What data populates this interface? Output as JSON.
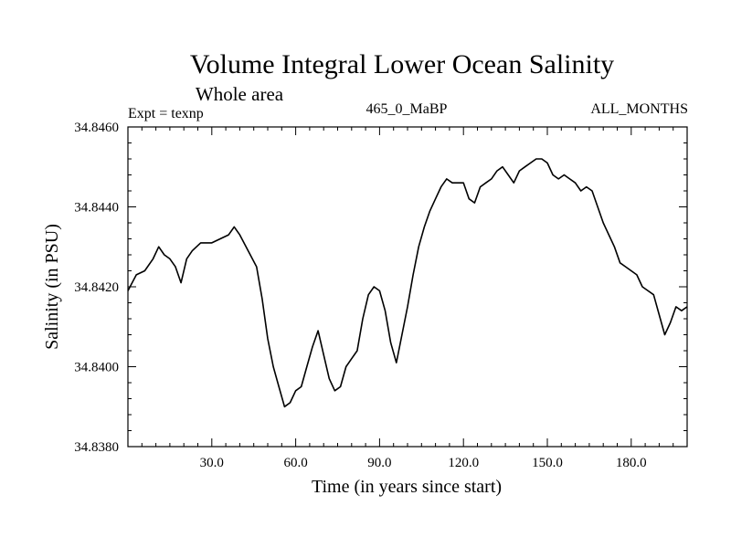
{
  "chart_data": {
    "type": "line",
    "title": "Volume Integral Lower Ocean Salinity",
    "subtitle": "Whole area",
    "annotations": {
      "left": "Expt = texnp",
      "center": "465_0_MaBP",
      "right": "ALL_MONTHS"
    },
    "xlabel": "Time (in years since start)",
    "ylabel": "Salinity (in PSU)",
    "xlim": [
      0,
      200
    ],
    "ylim": [
      34.838,
      34.846
    ],
    "x_ticks": [
      30,
      60,
      90,
      120,
      150,
      180
    ],
    "x_tick_labels": [
      "30.0",
      "60.0",
      "90.0",
      "120.0",
      "150.0",
      "180.0"
    ],
    "y_ticks": [
      34.838,
      34.84,
      34.842,
      34.844,
      34.846
    ],
    "y_tick_labels": [
      "34.8380",
      "34.8400",
      "34.8420",
      "34.8440",
      "34.8460"
    ],
    "grid": false,
    "series": [
      {
        "name": "salinity",
        "color": "#000000",
        "x": [
          0,
          3,
          6,
          9,
          11,
          13,
          15,
          17,
          19,
          21,
          23,
          26,
          30,
          33,
          36,
          38,
          40,
          43,
          46,
          48,
          50,
          52,
          54,
          56,
          58,
          60,
          62,
          64,
          66,
          68,
          70,
          72,
          74,
          76,
          78,
          80,
          82,
          84,
          86,
          88,
          90,
          92,
          94,
          96,
          98,
          100,
          102,
          104,
          106,
          108,
          110,
          112,
          114,
          116,
          118,
          120,
          122,
          124,
          126,
          128,
          130,
          132,
          134,
          136,
          138,
          140,
          142,
          144,
          146,
          148,
          150,
          152,
          154,
          156,
          158,
          160,
          162,
          164,
          166,
          168,
          170,
          172,
          174,
          176,
          178,
          180,
          182,
          184,
          186,
          188,
          190,
          192,
          194,
          196,
          198,
          200
        ],
        "values": [
          34.8419,
          34.8423,
          34.8424,
          34.8427,
          34.843,
          34.8428,
          34.8427,
          34.8425,
          34.8421,
          34.8427,
          34.8429,
          34.8431,
          34.8431,
          34.8432,
          34.8433,
          34.8435,
          34.8433,
          34.8429,
          34.8425,
          34.8417,
          34.8407,
          34.84,
          34.8395,
          34.839,
          34.8391,
          34.8394,
          34.8395,
          34.84,
          34.8405,
          34.8409,
          34.8403,
          34.8397,
          34.8394,
          34.8395,
          34.84,
          34.8402,
          34.8404,
          34.8412,
          34.8418,
          34.842,
          34.8419,
          34.8414,
          34.8406,
          34.8401,
          34.8408,
          34.8415,
          34.8423,
          34.843,
          34.8435,
          34.8439,
          34.8442,
          34.8445,
          34.8447,
          34.8446,
          34.8446,
          34.8446,
          34.8442,
          34.8441,
          34.8445,
          34.8446,
          34.8447,
          34.8449,
          34.845,
          34.8448,
          34.8446,
          34.8449,
          34.845,
          34.8451,
          34.8452,
          34.8452,
          34.8451,
          34.8448,
          34.8447,
          34.8448,
          34.8447,
          34.8446,
          34.8444,
          34.8445,
          34.8444,
          34.844,
          34.8436,
          34.8433,
          34.843,
          34.8426,
          34.8425,
          34.8424,
          34.8423,
          34.842,
          34.8419,
          34.8418,
          34.8413,
          34.8408,
          34.8411,
          34.8415,
          34.8414,
          34.8415
        ]
      }
    ]
  }
}
